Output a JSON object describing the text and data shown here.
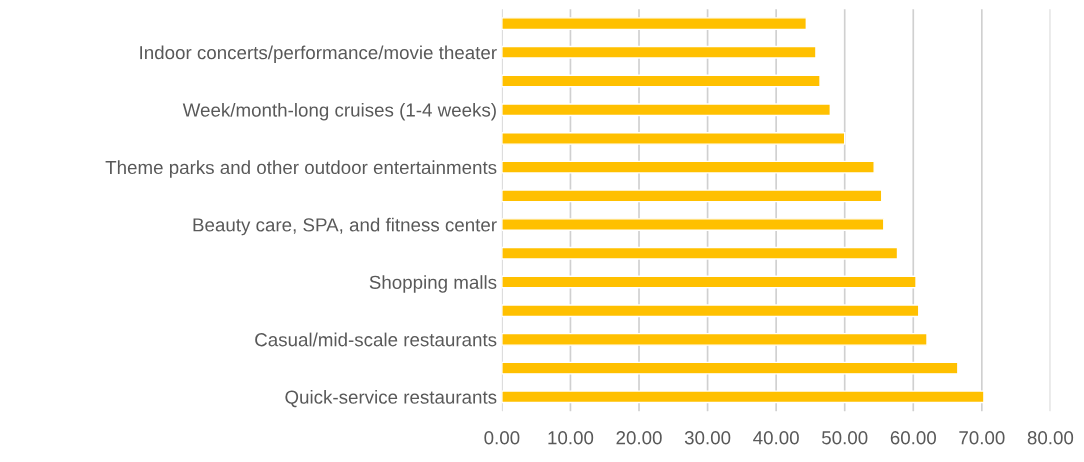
{
  "chart_data": {
    "type": "bar",
    "orientation": "horizontal",
    "categories": [
      null,
      "Indoor concerts/performance/movie theater",
      null,
      "Week/month-long cruises (1-4 weeks)",
      null,
      "Theme parks and other outdoor entertainments",
      null,
      "Beauty care, SPA, and fitness center",
      null,
      "Shopping malls",
      null,
      "Casual/mid-scale restaurants",
      null,
      "Quick-service restaurants"
    ],
    "values": [
      44.4,
      45.8,
      46.4,
      47.9,
      50.0,
      54.3,
      55.4,
      55.7,
      57.7,
      60.4,
      60.8,
      62.0,
      66.5,
      70.3
    ],
    "color": "#ffc000",
    "xlim": [
      0,
      80
    ],
    "xticks": [
      {
        "value": 0,
        "label": "0.00"
      },
      {
        "value": 10,
        "label": "10.00"
      },
      {
        "value": 20,
        "label": "20.00"
      },
      {
        "value": 30,
        "label": "30.00"
      },
      {
        "value": 40,
        "label": "40.00"
      },
      {
        "value": 50,
        "label": "50.00"
      },
      {
        "value": 60,
        "label": "60.00"
      },
      {
        "value": 70,
        "label": "70.00"
      },
      {
        "value": 80,
        "label": "80.00"
      }
    ],
    "grid": "x"
  }
}
